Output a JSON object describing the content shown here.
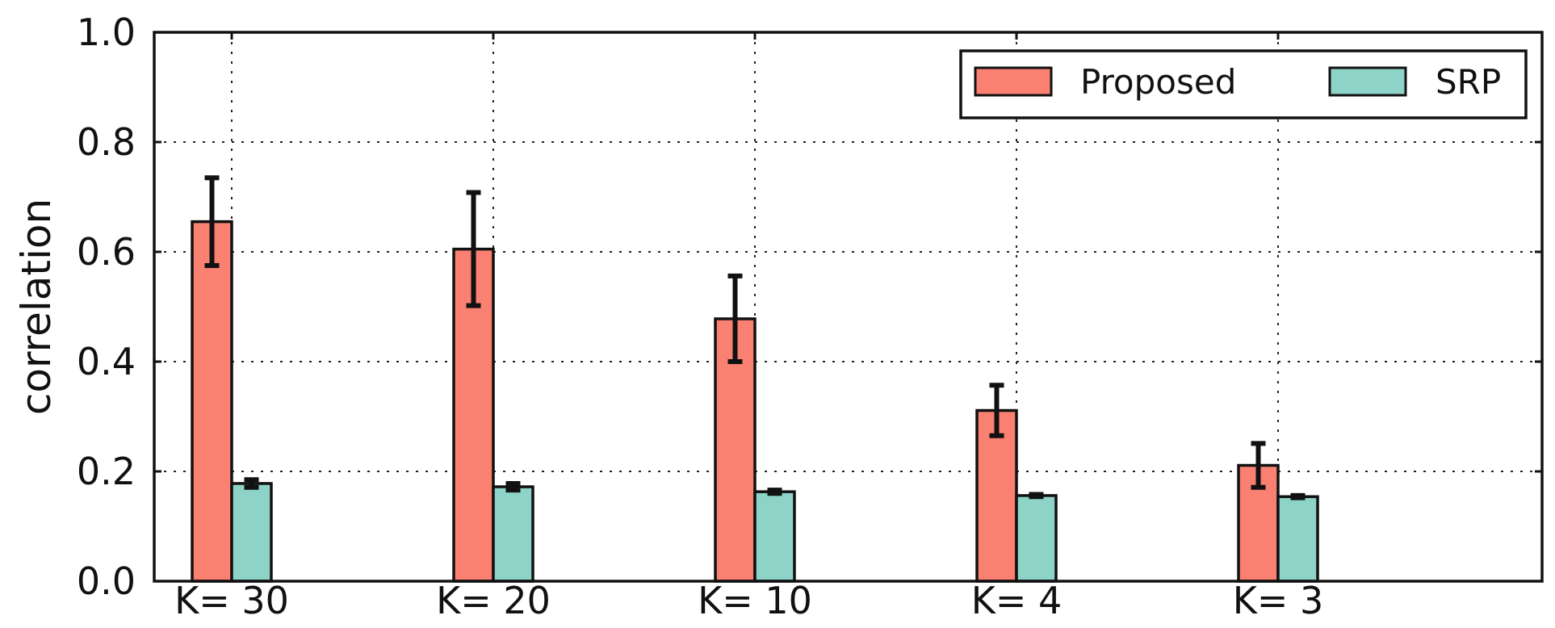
{
  "chart_data": {
    "type": "bar",
    "title": "",
    "xlabel": "",
    "ylabel": "correlation",
    "ylim": [
      0.0,
      1.0
    ],
    "yticks": [
      "0.0",
      "0.2",
      "0.4",
      "0.6",
      "0.8",
      "1.0"
    ],
    "grid": true,
    "legend_position": "top-right",
    "categories": [
      "K= 30",
      "K= 20",
      "K= 10",
      "K= 4",
      "K= 3"
    ],
    "series": [
      {
        "name": "Proposed",
        "color": "#fa8072",
        "values": [
          0.655,
          0.605,
          0.478,
          0.311,
          0.211
        ],
        "errors": [
          0.08,
          0.103,
          0.078,
          0.046,
          0.04
        ]
      },
      {
        "name": "SRP",
        "color": "#8dd3c7",
        "values": [
          0.178,
          0.172,
          0.163,
          0.156,
          0.154
        ],
        "errors": [
          0.007,
          0.006,
          0.003,
          0.002,
          0.002
        ]
      }
    ]
  }
}
